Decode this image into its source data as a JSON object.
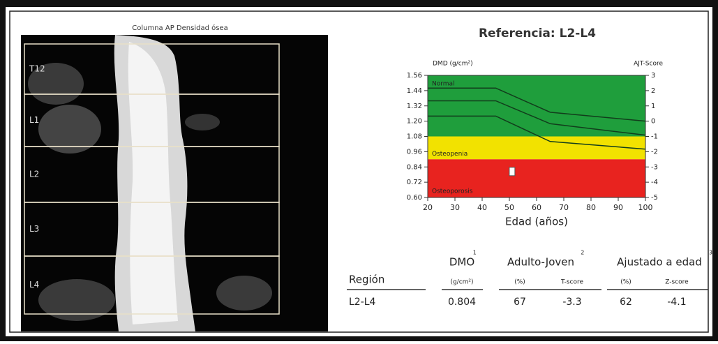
{
  "image": {
    "title": "Columna AP Densidad ósea",
    "regions": [
      "T12",
      "L1",
      "L2",
      "L3",
      "L4"
    ]
  },
  "chart_data": {
    "type": "line",
    "title": "Referencia: L2-L4",
    "y_label": "DMD (g/cm²)",
    "y2_label": "AJT-Score",
    "x_label": "Edad (años)",
    "xlim": [
      20,
      100
    ],
    "xticks": [
      20,
      30,
      40,
      50,
      60,
      70,
      80,
      90,
      100
    ],
    "ylim": [
      0.6,
      1.56
    ],
    "yticks": [
      1.56,
      1.44,
      1.32,
      {
        "value": 1.2,
        "label": "1.20"
      },
      1.08,
      0.96,
      0.84,
      0.72,
      {
        "value": 0.6,
        "label": "0.60"
      }
    ],
    "y2lim": [
      -5,
      3
    ],
    "y2ticks": [
      3,
      2,
      1,
      0,
      -1,
      -2,
      -3,
      -4,
      -5
    ],
    "bands": [
      {
        "label": "Normal",
        "from": 1.08,
        "to": 1.56,
        "color": "#1f9e3c"
      },
      {
        "label": "Osteopenia",
        "from": 0.9,
        "to": 1.08,
        "color": "#f2e200"
      },
      {
        "label": "Osteoporosis",
        "from": 0.6,
        "to": 0.9,
        "color": "#e8231f"
      }
    ],
    "series": [
      {
        "color": "#123d1c",
        "x": [
          20,
          45,
          65,
          100
        ],
        "values": [
          1.46,
          1.46,
          1.27,
          1.2
        ]
      },
      {
        "color": "#123d1c",
        "x": [
          20,
          45,
          65,
          100
        ],
        "values": [
          1.36,
          1.36,
          1.18,
          1.09
        ]
      },
      {
        "color": "#123d1c",
        "x": [
          20,
          45,
          65,
          100
        ],
        "values": [
          1.24,
          1.24,
          1.04,
          0.98
        ]
      }
    ],
    "patient": {
      "x": 51,
      "value": 0.804
    }
  },
  "table": {
    "headers": [
      {
        "text": "DMO",
        "note": "1"
      },
      {
        "text": "Adulto-Joven",
        "note": "2"
      },
      {
        "text": "Ajustado a edad",
        "note": "3"
      }
    ],
    "subheaders": [
      "Región",
      "(g/cm²)",
      "(%)",
      "T-score",
      "(%)",
      "Z-score"
    ],
    "rows": [
      [
        "L2-L4",
        "0.804",
        "67",
        "-3.3",
        "62",
        "-4.1"
      ]
    ]
  }
}
